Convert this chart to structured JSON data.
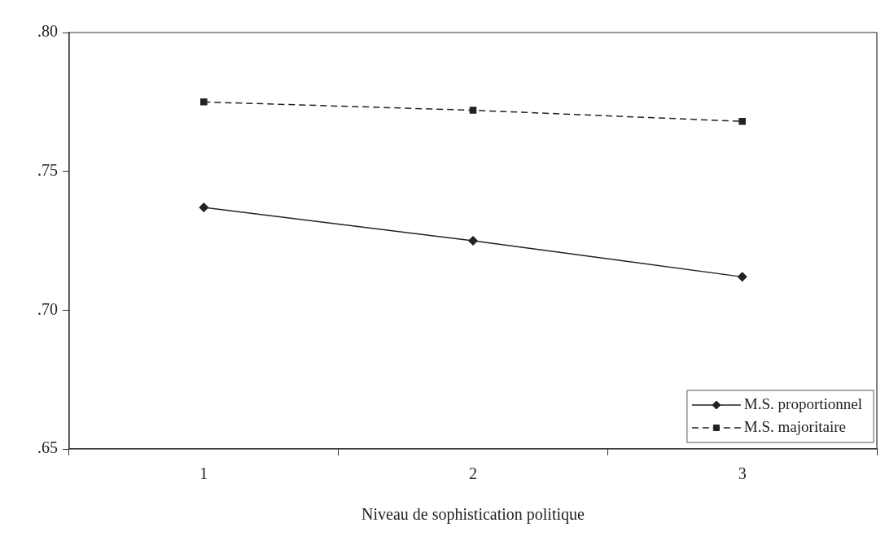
{
  "chart_data": {
    "type": "line",
    "xlabel": "Niveau de sophistication politique",
    "categories": [
      "1",
      "2",
      "3"
    ],
    "series": [
      {
        "name": "M.S. proportionnel",
        "color": "#222222",
        "values": [
          0.737,
          0.725,
          0.712
        ],
        "marker": "diamond",
        "line_style": "solid"
      },
      {
        "name": "M.S. majoritaire",
        "color": "#222222",
        "values": [
          0.775,
          0.772,
          0.768
        ],
        "marker": "square",
        "line_style": "dashed"
      }
    ],
    "ylim": [
      0.65,
      0.8
    ],
    "yticks": [
      {
        "value": 0.65,
        "label": ".65"
      },
      {
        "value": 0.7,
        "label": ".70"
      },
      {
        "value": 0.75,
        "label": ".75"
      },
      {
        "value": 0.8,
        "label": ".80"
      }
    ],
    "grid": false,
    "legend": "bottom right"
  }
}
